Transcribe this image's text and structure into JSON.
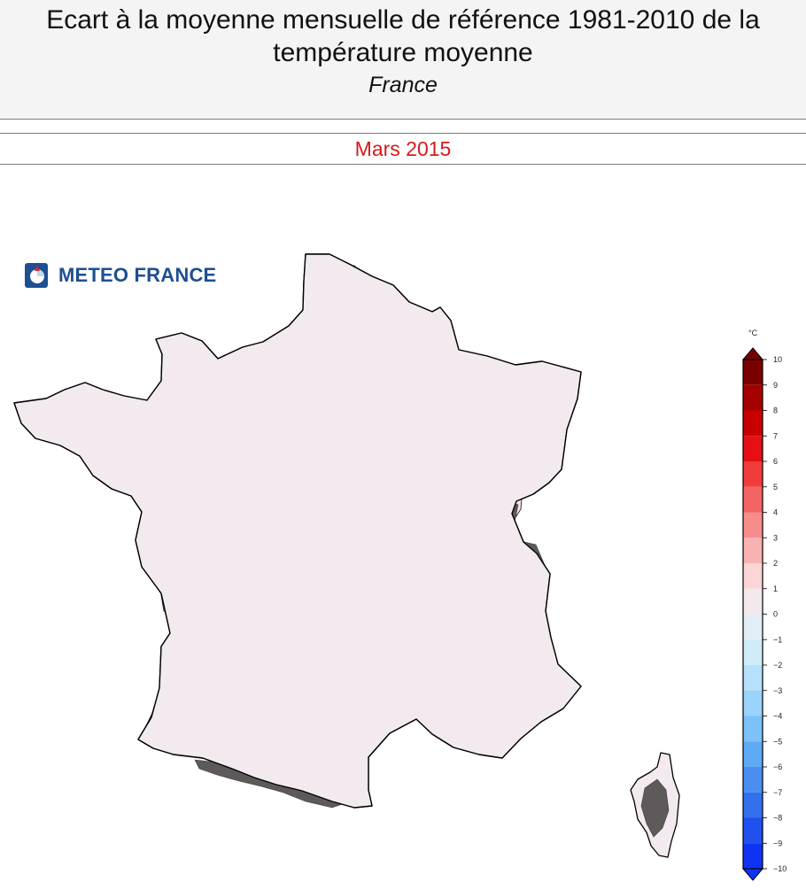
{
  "header": {
    "title": "Ecart à la moyenne mensuelle de référence 1981-2010 de la\ntempérature moyenne",
    "subtitle": "France",
    "period": "Mars 2015"
  },
  "logo": {
    "text": "METEO FRANCE",
    "icon": "meteo-france-logo-icon"
  },
  "colorbar": {
    "unit": "°C",
    "min": -10,
    "max": 10,
    "ticks": [
      "10",
      "9",
      "8",
      "7",
      "6",
      "5",
      "4",
      "3",
      "2",
      "1",
      "0",
      "−1",
      "−2",
      "−3",
      "−4",
      "−5",
      "−6",
      "−7",
      "−8",
      "−9",
      "−10"
    ],
    "colors": [
      "#7a0000",
      "#a50000",
      "#c80000",
      "#e60f14",
      "#f23c3c",
      "#f56464",
      "#f78c8c",
      "#f9b2b2",
      "#fcd6d6",
      "#f3e8ec",
      "#e3edf6",
      "#d0ecf8",
      "#b6e0fb",
      "#9ad3fb",
      "#7cc1f8",
      "#5eaaf4",
      "#4a8ff0",
      "#3370ee",
      "#2050ee",
      "#0f33f5"
    ]
  },
  "map": {
    "colors": {
      "neutral": "#f2eaee",
      "cool": "#e3edf6",
      "warm": "#fce2e4",
      "relief": "#5e5a5a",
      "relief_dark": "#403c3c",
      "outline": "#000000"
    }
  }
}
